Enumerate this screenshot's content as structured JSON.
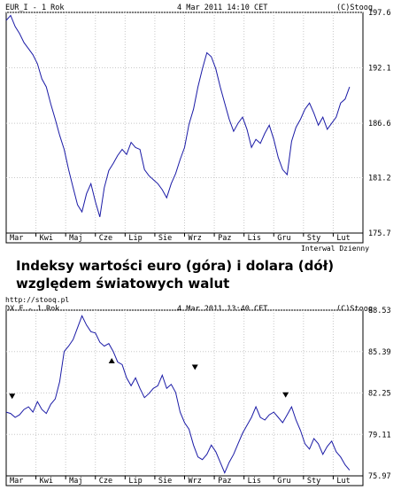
{
  "caption": {
    "line1": "Indeksy wartości euro (góra) i dolara (dół)",
    "line2": "względem światowych walut"
  },
  "chart_data": [
    {
      "type": "line",
      "title": "EUR_I - 1 Rok",
      "date": "4 Mar 2011 14:10 CET",
      "copyright": "(C)Stooq",
      "footer_right": "Interwal Dzienny",
      "categories": [
        "Mar",
        "Kwi",
        "Maj",
        "Cze",
        "Lip",
        "Sie",
        "Wrz",
        "Paz",
        "Lis",
        "Gru",
        "Sty",
        "Lut"
      ],
      "y_ticks": [
        "197.6",
        "192.1",
        "186.6",
        "181.2",
        "175.7"
      ],
      "ylim": [
        175.7,
        197.6
      ],
      "color": "#1a1aa6",
      "series": [
        {
          "x": [
            0,
            0.15,
            0.3,
            0.45,
            0.6,
            0.75,
            0.9,
            1.05,
            1.2,
            1.35,
            1.5,
            1.65,
            1.8,
            1.95,
            2.1,
            2.25,
            2.4,
            2.55,
            2.7,
            2.85,
            3.0,
            3.15,
            3.3,
            3.45,
            3.6,
            3.75,
            3.9,
            4.05,
            4.2,
            4.35,
            4.5,
            4.65,
            4.8,
            4.95,
            5.1,
            5.25,
            5.4,
            5.55,
            5.7,
            5.85,
            6.0,
            6.15,
            6.3,
            6.45,
            6.6,
            6.75,
            6.9,
            7.05,
            7.2,
            7.35,
            7.5,
            7.65,
            7.8,
            7.95,
            8.1,
            8.25,
            8.4,
            8.55,
            8.7,
            8.85,
            9.0,
            9.15,
            9.3,
            9.45,
            9.6,
            9.75,
            9.9,
            10.05,
            10.2,
            10.35,
            10.5,
            10.65,
            10.8,
            10.95,
            11.1,
            11.25,
            11.4,
            11.55
          ],
          "values": [
            196.8,
            197.3,
            196.2,
            195.5,
            194.6,
            194.0,
            193.4,
            192.5,
            191.0,
            190.2,
            188.5,
            187.0,
            185.4,
            184.0,
            182.0,
            180.2,
            178.5,
            177.8,
            179.6,
            180.6,
            178.8,
            177.3,
            180.2,
            181.9,
            182.6,
            183.4,
            184.0,
            183.5,
            184.7,
            184.2,
            184.0,
            182.0,
            181.4,
            181.0,
            180.6,
            180.0,
            179.2,
            180.6,
            181.6,
            183.0,
            184.2,
            186.5,
            188.0,
            190.2,
            192.0,
            193.6,
            193.2,
            192.0,
            190.2,
            188.6,
            187.0,
            185.8,
            186.6,
            187.2,
            186.0,
            184.2,
            185.0,
            184.6,
            185.6,
            186.4,
            185.0,
            183.2,
            182.0,
            181.5,
            184.8,
            186.2,
            187.0,
            188.0,
            188.6,
            187.6,
            186.4,
            187.2,
            186.0,
            186.6,
            187.2,
            188.6,
            189.0,
            190.2
          ]
        }
      ]
    },
    {
      "type": "line",
      "title": "DX.F - 1 Rok",
      "date": "4 Mar 2011 13:40 CET",
      "copyright": "(C)Stooq",
      "footer_left": "http://stooq.pl",
      "categories": [
        "Mar",
        "Kwi",
        "Maj",
        "Cze",
        "Lip",
        "Sie",
        "Wrz",
        "Paz",
        "Lis",
        "Gru",
        "Sty",
        "Lut"
      ],
      "y_ticks": [
        "88.53",
        "85.39",
        "82.25",
        "79.11",
        "75.97"
      ],
      "ylim": [
        75.97,
        88.53
      ],
      "color": "#1a1aa6",
      "series": [
        {
          "x": [
            0,
            0.15,
            0.3,
            0.45,
            0.6,
            0.75,
            0.9,
            1.05,
            1.2,
            1.35,
            1.5,
            1.65,
            1.8,
            1.95,
            2.1,
            2.25,
            2.4,
            2.55,
            2.7,
            2.85,
            3.0,
            3.15,
            3.3,
            3.45,
            3.6,
            3.75,
            3.9,
            4.05,
            4.2,
            4.35,
            4.5,
            4.65,
            4.8,
            4.95,
            5.1,
            5.25,
            5.4,
            5.55,
            5.7,
            5.85,
            6.0,
            6.15,
            6.3,
            6.45,
            6.6,
            6.75,
            6.9,
            7.05,
            7.2,
            7.35,
            7.5,
            7.65,
            7.8,
            7.95,
            8.1,
            8.25,
            8.4,
            8.55,
            8.7,
            8.85,
            9.0,
            9.15,
            9.3,
            9.45,
            9.6,
            9.75,
            9.9,
            10.05,
            10.2,
            10.35,
            10.5,
            10.65,
            10.8,
            10.95,
            11.1,
            11.25,
            11.4,
            11.55
          ],
          "values": [
            80.8,
            80.7,
            80.4,
            80.6,
            81.0,
            81.2,
            80.8,
            81.6,
            81.0,
            80.7,
            81.4,
            81.8,
            83.1,
            85.4,
            85.8,
            86.3,
            87.2,
            88.1,
            87.4,
            86.9,
            86.8,
            86.1,
            85.8,
            86.0,
            85.4,
            84.6,
            84.4,
            83.4,
            82.8,
            83.4,
            82.6,
            81.9,
            82.2,
            82.6,
            82.8,
            83.6,
            82.6,
            82.9,
            82.3,
            80.8,
            80.0,
            79.5,
            78.3,
            77.4,
            77.2,
            77.6,
            78.3,
            77.8,
            77.0,
            76.2,
            77.0,
            77.6,
            78.4,
            79.2,
            79.8,
            80.4,
            81.2,
            80.4,
            80.2,
            80.6,
            80.8,
            80.4,
            80.0,
            80.6,
            81.2,
            80.2,
            79.4,
            78.4,
            78.0,
            78.8,
            78.4,
            77.6,
            78.2,
            78.6,
            77.8,
            77.4,
            76.8,
            76.4
          ]
        }
      ],
      "markers": [
        {
          "x": 0.2,
          "y": 82.0,
          "dir": "down"
        },
        {
          "x": 3.55,
          "y": 84.7,
          "dir": "up"
        },
        {
          "x": 6.35,
          "y": 84.2,
          "dir": "down"
        },
        {
          "x": 9.4,
          "y": 82.1,
          "dir": "down"
        }
      ]
    }
  ]
}
